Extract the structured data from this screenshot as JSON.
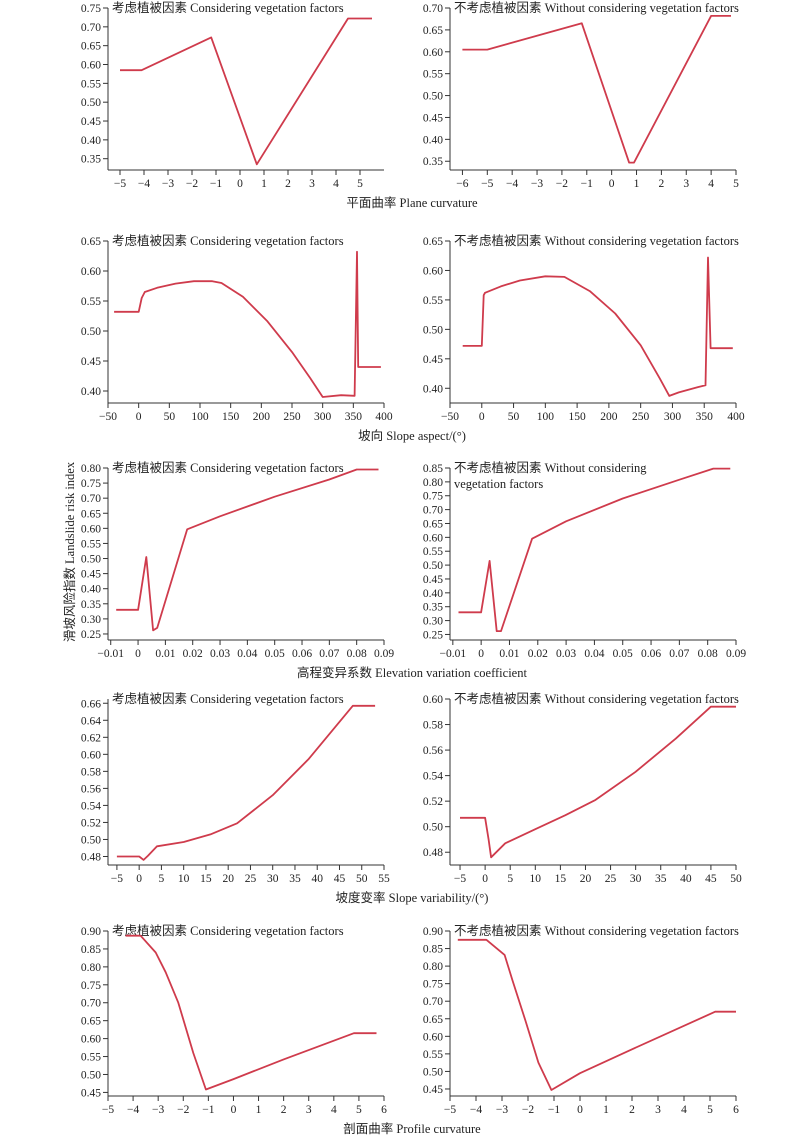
{
  "figure": {
    "y_label": "滑坡风险指数 Landslide risk index",
    "row_xlabels": [
      "平面曲率 Plane curvature",
      "坡向 Slope aspect/(°)",
      "高程变异系数 Elevation variation coefficient",
      "坡度变率 Slope variability/(°)",
      "剖面曲率 Profile curvature"
    ]
  },
  "chart_data": [
    {
      "type": "line",
      "title": "考虑植被因素 Considering vegetation factors",
      "xlabel": "平面曲率 Plane curvature",
      "xlim": [
        -5.5,
        6
      ],
      "xticks": [
        -5,
        -4,
        -3,
        -2,
        -1,
        0,
        1,
        2,
        3,
        4,
        5
      ],
      "ylim": [
        0.32,
        0.75
      ],
      "yticks": [
        0.35,
        0.4,
        0.45,
        0.5,
        0.55,
        0.6,
        0.65,
        0.7,
        0.75
      ],
      "series": [
        {
          "x": [
            -5,
            -4.1,
            -1.2,
            0.7,
            4.5,
            5.5
          ],
          "y": [
            0.585,
            0.585,
            0.672,
            0.335,
            0.722,
            0.722
          ]
        }
      ]
    },
    {
      "type": "line",
      "title": "不考虑植被因素 Without considering vegetation factors",
      "xlabel": "平面曲率 Plane curvature",
      "xlim": [
        -6.5,
        5
      ],
      "xticks": [
        -6,
        -5,
        -4,
        -3,
        -2,
        -1,
        0,
        1,
        2,
        3,
        4,
        5
      ],
      "ylim": [
        0.33,
        0.7
      ],
      "yticks": [
        0.35,
        0.4,
        0.45,
        0.5,
        0.55,
        0.6,
        0.65,
        0.7
      ],
      "series": [
        {
          "x": [
            -6,
            -5,
            -1.2,
            0.7,
            0.9,
            4,
            4.8
          ],
          "y": [
            0.605,
            0.605,
            0.665,
            0.347,
            0.347,
            0.682,
            0.682
          ]
        }
      ]
    },
    {
      "type": "line",
      "title": "考虑植被因素 Considering vegetation factors",
      "xlabel": "坡向 Slope aspect/(°)",
      "xlim": [
        -50,
        400
      ],
      "xticks": [
        -50,
        0,
        50,
        100,
        150,
        200,
        250,
        300,
        350,
        400
      ],
      "ylim": [
        0.38,
        0.65
      ],
      "yticks": [
        0.4,
        0.45,
        0.5,
        0.55,
        0.6,
        0.65
      ],
      "series": [
        {
          "x": [
            -40,
            0,
            5,
            10,
            30,
            60,
            90,
            120,
            135,
            170,
            210,
            250,
            280,
            300,
            330,
            352,
            356,
            358,
            362,
            395
          ],
          "y": [
            0.532,
            0.532,
            0.555,
            0.565,
            0.572,
            0.579,
            0.583,
            0.583,
            0.58,
            0.557,
            0.516,
            0.465,
            0.421,
            0.39,
            0.393,
            0.392,
            0.632,
            0.44,
            0.44,
            0.44
          ]
        }
      ]
    },
    {
      "type": "line",
      "title": "不考虑植被因素 Without considering vegetation factors",
      "xlabel": "坡向 Slope aspect/(°)",
      "xlim": [
        -50,
        400
      ],
      "xticks": [
        -50,
        0,
        50,
        100,
        150,
        200,
        250,
        300,
        350,
        400
      ],
      "ylim": [
        0.375,
        0.65
      ],
      "yticks": [
        0.4,
        0.45,
        0.5,
        0.55,
        0.6,
        0.65
      ],
      "series": [
        {
          "x": [
            -30,
            0,
            3,
            5,
            30,
            60,
            100,
            130,
            170,
            210,
            250,
            280,
            295,
            310,
            340,
            352,
            356,
            360,
            395
          ],
          "y": [
            0.472,
            0.472,
            0.558,
            0.562,
            0.573,
            0.583,
            0.59,
            0.589,
            0.565,
            0.527,
            0.473,
            0.417,
            0.387,
            0.393,
            0.402,
            0.405,
            0.622,
            0.468,
            0.468
          ]
        }
      ]
    },
    {
      "type": "line",
      "title": "考虑植被因素 Considering vegetation factors",
      "xlabel": "高程变异系数 Elevation variation coefficient",
      "xlim": [
        -0.011,
        0.09
      ],
      "xticks": [
        -0.01,
        0,
        0.01,
        0.02,
        0.03,
        0.04,
        0.05,
        0.06,
        0.07,
        0.08,
        0.09
      ],
      "ylim": [
        0.23,
        0.8
      ],
      "yticks": [
        0.25,
        0.3,
        0.35,
        0.4,
        0.45,
        0.5,
        0.55,
        0.6,
        0.65,
        0.7,
        0.75,
        0.8
      ],
      "series": [
        {
          "x": [
            -0.008,
            0,
            0.003,
            0.0055,
            0.007,
            0.018,
            0.03,
            0.05,
            0.07,
            0.08,
            0.088
          ],
          "y": [
            0.33,
            0.33,
            0.505,
            0.262,
            0.27,
            0.597,
            0.64,
            0.705,
            0.762,
            0.795,
            0.795
          ]
        }
      ]
    },
    {
      "type": "line",
      "title": "不考虑植被因素 Without considering vegetation factors",
      "xlabel": "高程变异系数 Elevation variation coefficient",
      "xlim": [
        -0.011,
        0.09
      ],
      "xticks": [
        -0.01,
        0,
        0.01,
        0.02,
        0.03,
        0.04,
        0.05,
        0.06,
        0.07,
        0.08,
        0.09
      ],
      "ylim": [
        0.23,
        0.85
      ],
      "yticks": [
        0.25,
        0.3,
        0.35,
        0.4,
        0.45,
        0.5,
        0.55,
        0.6,
        0.65,
        0.7,
        0.75,
        0.8,
        0.85
      ],
      "series": [
        {
          "x": [
            -0.008,
            0,
            0.003,
            0.0055,
            0.007,
            0.018,
            0.03,
            0.05,
            0.07,
            0.082,
            0.088
          ],
          "y": [
            0.33,
            0.33,
            0.515,
            0.262,
            0.262,
            0.595,
            0.658,
            0.74,
            0.808,
            0.848,
            0.848
          ]
        }
      ]
    },
    {
      "type": "line",
      "title": "考虑植被因素 Considering vegetation factors",
      "xlabel": "坡度变率 Slope variability/(°)",
      "xlim": [
        -7,
        55
      ],
      "xticks": [
        -5,
        0,
        5,
        10,
        15,
        20,
        25,
        30,
        35,
        40,
        45,
        50,
        55
      ],
      "ylim": [
        0.47,
        0.665
      ],
      "yticks": [
        0.48,
        0.5,
        0.52,
        0.54,
        0.56,
        0.58,
        0.6,
        0.62,
        0.64,
        0.66
      ],
      "series": [
        {
          "x": [
            -5,
            0,
            1,
            2,
            4,
            10,
            16,
            22,
            30,
            38,
            48,
            53
          ],
          "y": [
            0.48,
            0.48,
            0.476,
            0.481,
            0.492,
            0.497,
            0.506,
            0.519,
            0.552,
            0.594,
            0.657,
            0.657
          ]
        }
      ]
    },
    {
      "type": "line",
      "title": "不考虑植被因素 Without considering vegetation factors",
      "xlabel": "坡度变率 Slope variability/(°)",
      "xlim": [
        -7,
        50
      ],
      "xticks": [
        -5,
        0,
        5,
        10,
        15,
        20,
        25,
        30,
        35,
        40,
        45,
        50
      ],
      "ylim": [
        0.47,
        0.6
      ],
      "yticks": [
        0.48,
        0.5,
        0.52,
        0.54,
        0.56,
        0.58,
        0.6
      ],
      "series": [
        {
          "x": [
            -5,
            0,
            0.7,
            1.2,
            4,
            10,
            16,
            22,
            30,
            38,
            45,
            50
          ],
          "y": [
            0.507,
            0.507,
            0.49,
            0.476,
            0.487,
            0.498,
            0.509,
            0.521,
            0.543,
            0.569,
            0.594,
            0.594
          ]
        }
      ]
    },
    {
      "type": "line",
      "title": "考虑植被因素 Considering vegetation factors",
      "xlabel": "剖面曲率 Profile curvature",
      "xlim": [
        -5,
        6
      ],
      "xticks": [
        -5,
        -4,
        -3,
        -2,
        -1,
        0,
        1,
        2,
        3,
        4,
        5,
        6
      ],
      "ylim": [
        0.44,
        0.9
      ],
      "yticks": [
        0.45,
        0.5,
        0.55,
        0.6,
        0.65,
        0.7,
        0.75,
        0.8,
        0.85,
        0.9
      ],
      "series": [
        {
          "x": [
            -4.3,
            -3.7,
            -3.1,
            -2.7,
            -2.2,
            -1.6,
            -1.1,
            0,
            2,
            4.8,
            5.7
          ],
          "y": [
            0.887,
            0.887,
            0.84,
            0.785,
            0.7,
            0.56,
            0.458,
            0.487,
            0.542,
            0.615,
            0.615
          ]
        }
      ]
    },
    {
      "type": "line",
      "title": "不考虑植被因素 Without considering vegetation factors",
      "xlabel": "剖面曲率 Profile curvature",
      "xlim": [
        -5,
        6
      ],
      "xticks": [
        -5,
        -4,
        -3,
        -2,
        -1,
        0,
        1,
        2,
        3,
        4,
        5,
        6
      ],
      "ylim": [
        0.43,
        0.9
      ],
      "yticks": [
        0.45,
        0.5,
        0.55,
        0.6,
        0.65,
        0.7,
        0.75,
        0.8,
        0.85,
        0.9
      ],
      "series": [
        {
          "x": [
            -4.7,
            -3.6,
            -2.9,
            -2.6,
            -2.1,
            -1.6,
            -1.1,
            0,
            2,
            5.2,
            6.0
          ],
          "y": [
            0.875,
            0.875,
            0.832,
            0.76,
            0.645,
            0.525,
            0.447,
            0.495,
            0.563,
            0.67,
            0.67
          ]
        }
      ]
    }
  ]
}
